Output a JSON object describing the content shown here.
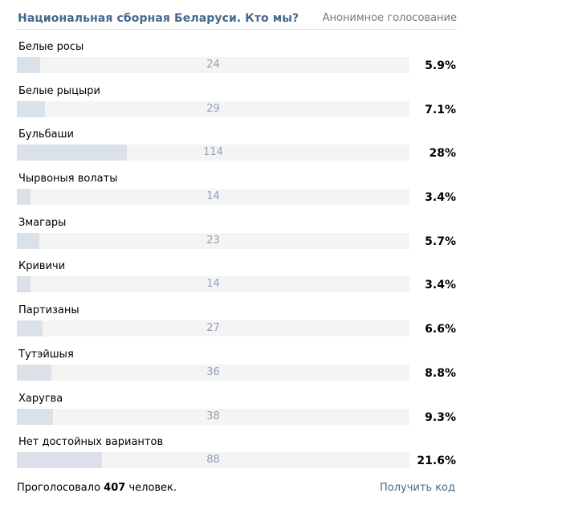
{
  "poll": {
    "title": "Национальная сборная Беларуси. Кто мы?",
    "type_label": "Анонимное голосование",
    "options": [
      {
        "label": "Белые росы",
        "votes": "24",
        "percent": "5.9%",
        "share": 5.9
      },
      {
        "label": "Белые рыцыри",
        "votes": "29",
        "percent": "7.1%",
        "share": 7.1
      },
      {
        "label": "Бульбаши",
        "votes": "114",
        "percent": "28%",
        "share": 28.0
      },
      {
        "label": "Чырвоныя волаты",
        "votes": "14",
        "percent": "3.4%",
        "share": 3.4
      },
      {
        "label": "Змагары",
        "votes": "23",
        "percent": "5.7%",
        "share": 5.7
      },
      {
        "label": "Кривичи",
        "votes": "14",
        "percent": "3.4%",
        "share": 3.4
      },
      {
        "label": "Партизаны",
        "votes": "27",
        "percent": "6.6%",
        "share": 6.6
      },
      {
        "label": "Тутэйшыя",
        "votes": "36",
        "percent": "8.8%",
        "share": 8.8
      },
      {
        "label": "Харугва",
        "votes": "38",
        "percent": "9.3%",
        "share": 9.3
      },
      {
        "label": "Нет достойных вариантов",
        "votes": "88",
        "percent": "21.6%",
        "share": 21.6
      }
    ],
    "footer": {
      "voted_prefix": "Проголосовало",
      "voted_count": "407",
      "voted_suffix": "человек.",
      "get_code_label": "Получить код"
    }
  },
  "colors": {
    "title": "#45688e",
    "bar_fill": "#dae1e8",
    "bar_track": "#f4f4f4",
    "count_text": "#8fa1b5",
    "link": "#45688e"
  }
}
